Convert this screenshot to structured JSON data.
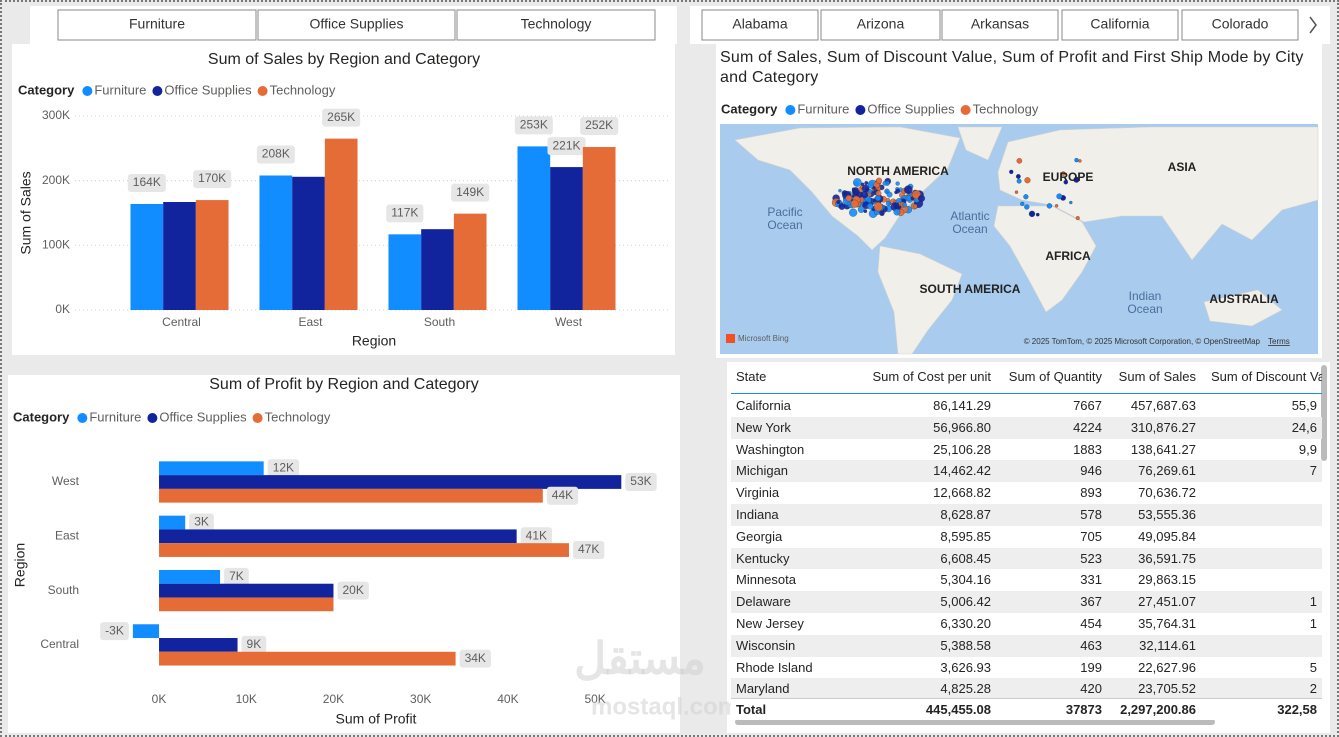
{
  "slicers": {
    "category": [
      "Furniture",
      "Office Supplies",
      "Technology"
    ],
    "state": [
      "Alabama",
      "Arizona",
      "Arkansas",
      "California",
      "Colorado"
    ]
  },
  "chart_data": [
    {
      "type": "bar",
      "title": "Sum of Sales by Region and Category",
      "x_label": "Region",
      "y_label": "Sum of Sales",
      "legend_title": "Category",
      "legend": "top-left",
      "categories": [
        "Central",
        "East",
        "South",
        "West"
      ],
      "series": [
        {
          "name": "Furniture",
          "color": "#118dff",
          "values": [
            164000,
            208000,
            117000,
            253000
          ],
          "value_labels": [
            "164K",
            "208K",
            "117K",
            "253K"
          ]
        },
        {
          "name": "Office Supplies",
          "color": "#12239e",
          "values": [
            167000,
            206000,
            125000,
            221000
          ],
          "value_labels": [
            null,
            null,
            null,
            "221K"
          ]
        },
        {
          "name": "Technology",
          "color": "#e66c37",
          "values": [
            170000,
            265000,
            149000,
            252000
          ],
          "value_labels": [
            "170K",
            "265K",
            "149K",
            "252K"
          ]
        }
      ],
      "ylim": [
        0,
        300000
      ],
      "yticks": [
        {
          "value": 0,
          "label": "0K"
        },
        {
          "value": 100000,
          "label": "100K"
        },
        {
          "value": 200000,
          "label": "200K"
        },
        {
          "value": 300000,
          "label": "300K"
        }
      ],
      "grid": true
    },
    {
      "type": "hbar",
      "title": "Sum of Profit by Region and Category",
      "x_label": "Sum of Profit",
      "y_label": "Region",
      "legend_title": "Category",
      "legend": "top-left",
      "categories": [
        "West",
        "East",
        "South",
        "Central"
      ],
      "series": [
        {
          "name": "Furniture",
          "color": "#118dff",
          "values": [
            12000,
            3000,
            7000,
            -3000
          ],
          "value_labels": [
            "12K",
            "3K",
            "7K",
            "-3K"
          ]
        },
        {
          "name": "Office Supplies",
          "color": "#12239e",
          "values": [
            53000,
            41000,
            20000,
            9000
          ],
          "value_labels": [
            "53K",
            "41K",
            "20K",
            "9K"
          ]
        },
        {
          "name": "Technology",
          "color": "#e66c37",
          "values": [
            44000,
            47000,
            20000,
            34000
          ],
          "value_labels": [
            "44K",
            "47K",
            null,
            "34K"
          ]
        }
      ],
      "xlim": [
        -3500,
        57000
      ],
      "xticks": [
        {
          "value": 0,
          "label": "0K"
        },
        {
          "value": 10000,
          "label": "10K"
        },
        {
          "value": 20000,
          "label": "20K"
        },
        {
          "value": 30000,
          "label": "30K"
        },
        {
          "value": 40000,
          "label": "40K"
        },
        {
          "value": 50000,
          "label": "50K"
        }
      ],
      "grid": false
    }
  ],
  "map": {
    "title": "Sum of Sales, Sum of Discount Value, Sum of Profit and First Ship Mode by City and Category",
    "legend_title": "Category",
    "legend": [
      {
        "name": "Furniture",
        "color": "#118dff"
      },
      {
        "name": "Office Supplies",
        "color": "#12239e"
      },
      {
        "name": "Technology",
        "color": "#e66c37"
      }
    ],
    "labels": [
      {
        "lines": [
          "NORTH AMERICA"
        ],
        "kind": "continent"
      },
      {
        "lines": [
          "EUROPE"
        ],
        "kind": "continent"
      },
      {
        "lines": [
          "ASIA"
        ],
        "kind": "continent"
      },
      {
        "lines": [
          "Pacific",
          "Ocean"
        ],
        "kind": "ocean"
      },
      {
        "lines": [
          "Atlantic",
          "Ocean"
        ],
        "kind": "ocean"
      },
      {
        "lines": [
          "AFRICA"
        ],
        "kind": "continent"
      },
      {
        "lines": [
          "SOUTH AMERICA"
        ],
        "kind": "continent"
      },
      {
        "lines": [
          "Indian",
          "Ocean"
        ],
        "kind": "ocean"
      },
      {
        "lines": [
          "AUSTRALIA"
        ],
        "kind": "continent"
      }
    ],
    "provider": "Microsoft Bing",
    "attribution": "© 2025 TomTom, © 2025 Microsoft Corporation, © OpenStreetMap",
    "terms": "Terms"
  },
  "table": {
    "columns": [
      "State",
      "Sum of Cost per unit",
      "Sum of Quantity",
      "Sum of Sales",
      "Sum of Discount Value"
    ],
    "rows": [
      [
        "California",
        "86,141.29",
        "7667",
        "457,687.63",
        "55,9"
      ],
      [
        "New York",
        "56,966.80",
        "4224",
        "310,876.27",
        "24,6"
      ],
      [
        "Washington",
        "25,106.28",
        "1883",
        "138,641.27",
        "9,9"
      ],
      [
        "Michigan",
        "14,462.42",
        "946",
        "76,269.61",
        "7"
      ],
      [
        "Virginia",
        "12,668.82",
        "893",
        "70,636.72",
        null
      ],
      [
        "Indiana",
        "8,628.87",
        "578",
        "53,555.36",
        null
      ],
      [
        "Georgia",
        "8,595.85",
        "705",
        "49,095.84",
        null
      ],
      [
        "Kentucky",
        "6,608.45",
        "523",
        "36,591.75",
        null
      ],
      [
        "Minnesota",
        "5,304.16",
        "331",
        "29,863.15",
        null
      ],
      [
        "Delaware",
        "5,006.42",
        "367",
        "27,451.07",
        "1"
      ],
      [
        "New Jersey",
        "6,330.20",
        "454",
        "35,764.31",
        "1"
      ],
      [
        "Wisconsin",
        "5,388.58",
        "463",
        "32,114.61",
        null
      ],
      [
        "Rhode Island",
        "3,626.93",
        "199",
        "22,627.96",
        "5"
      ],
      [
        "Maryland",
        "4,825.28",
        "420",
        "23,705.52",
        "2"
      ]
    ],
    "total": [
      "Total",
      "445,455.08",
      "37873",
      "2,297,200.86",
      "322,58"
    ]
  },
  "watermark": [
    "مستقل",
    "mostaql.com"
  ]
}
